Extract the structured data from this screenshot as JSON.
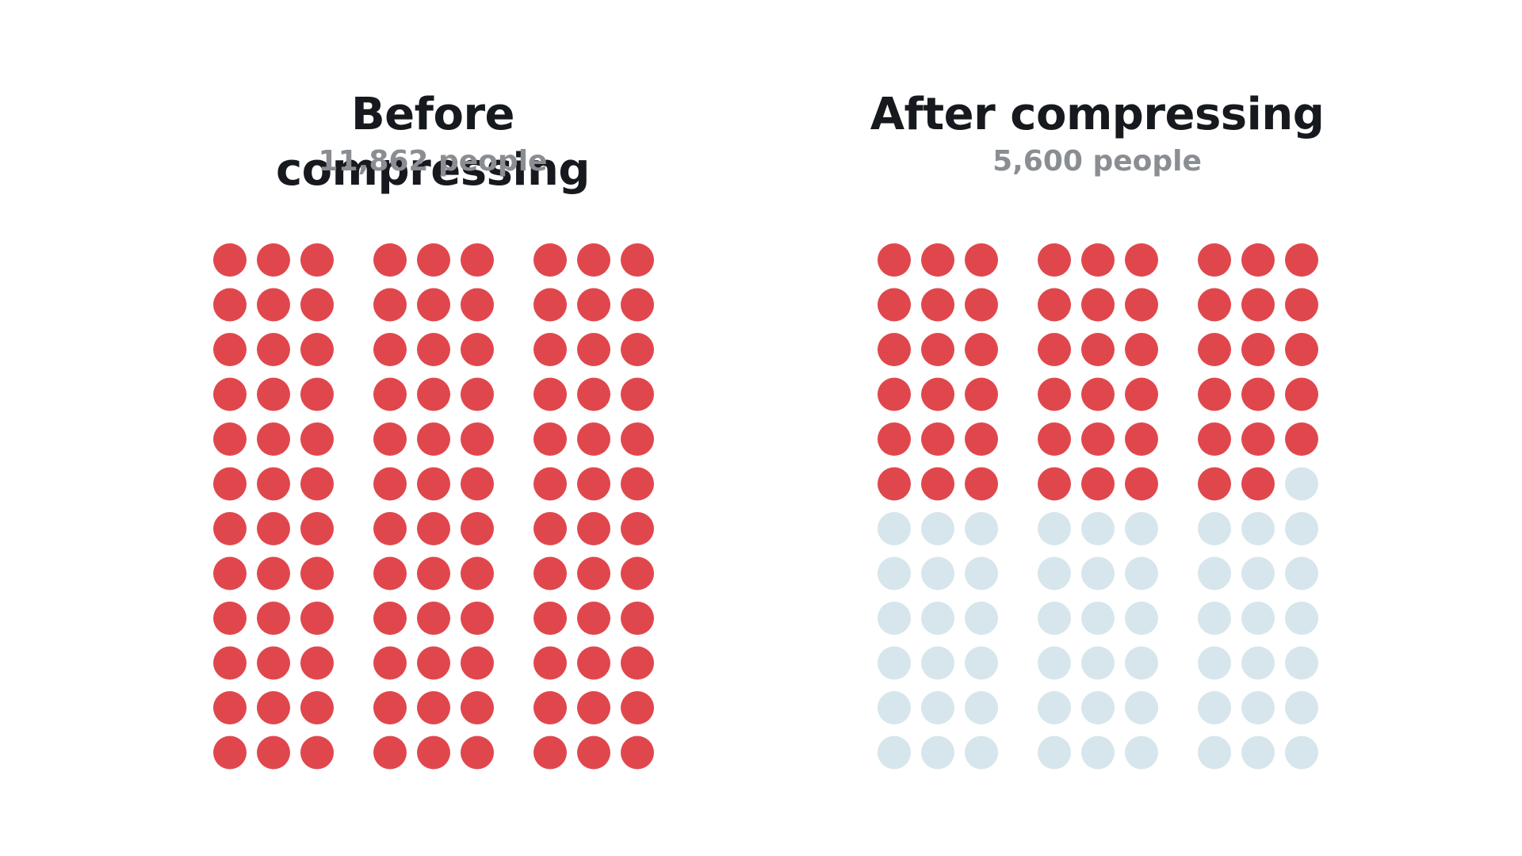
{
  "chart_data": [
    {
      "type": "dot-matrix",
      "title": "Before compressing",
      "subtitle": "11,862 people",
      "rows": 12,
      "groups": 3,
      "cols_per_group": 3,
      "filled_dots": 108,
      "total_dots": 108
    },
    {
      "type": "dot-matrix",
      "title": "After compressing",
      "subtitle": "5,600 people",
      "rows": 12,
      "groups": 3,
      "cols_per_group": 3,
      "filled_dots": 53,
      "total_dots": 108
    }
  ],
  "colors": {
    "filled": "#e0474c",
    "empty": "#d6e6ec"
  }
}
